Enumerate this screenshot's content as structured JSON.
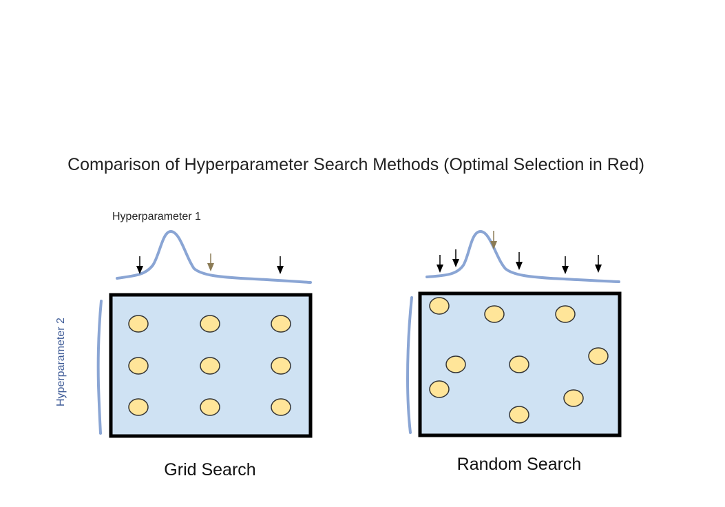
{
  "title": "Comparison of Hyperparameter Search Methods (Optimal Selection in Red)",
  "axis_labels": {
    "hyperparameter_1": "Hyperparameter 1",
    "hyperparameter_2": "Hyperparameter 2"
  },
  "panels": {
    "grid": {
      "label": "Grid Search"
    },
    "random": {
      "label": "Random Search"
    }
  },
  "colors": {
    "curve": "#8aa5d4",
    "box_fill": "#cfe2f3",
    "box_stroke": "#000000",
    "point_fill": "#ffe599",
    "point_stroke": "#333333",
    "arrow": "#000000",
    "optimal_arrow": "#8b7b55",
    "label_hp2": "#3d5a96"
  }
}
